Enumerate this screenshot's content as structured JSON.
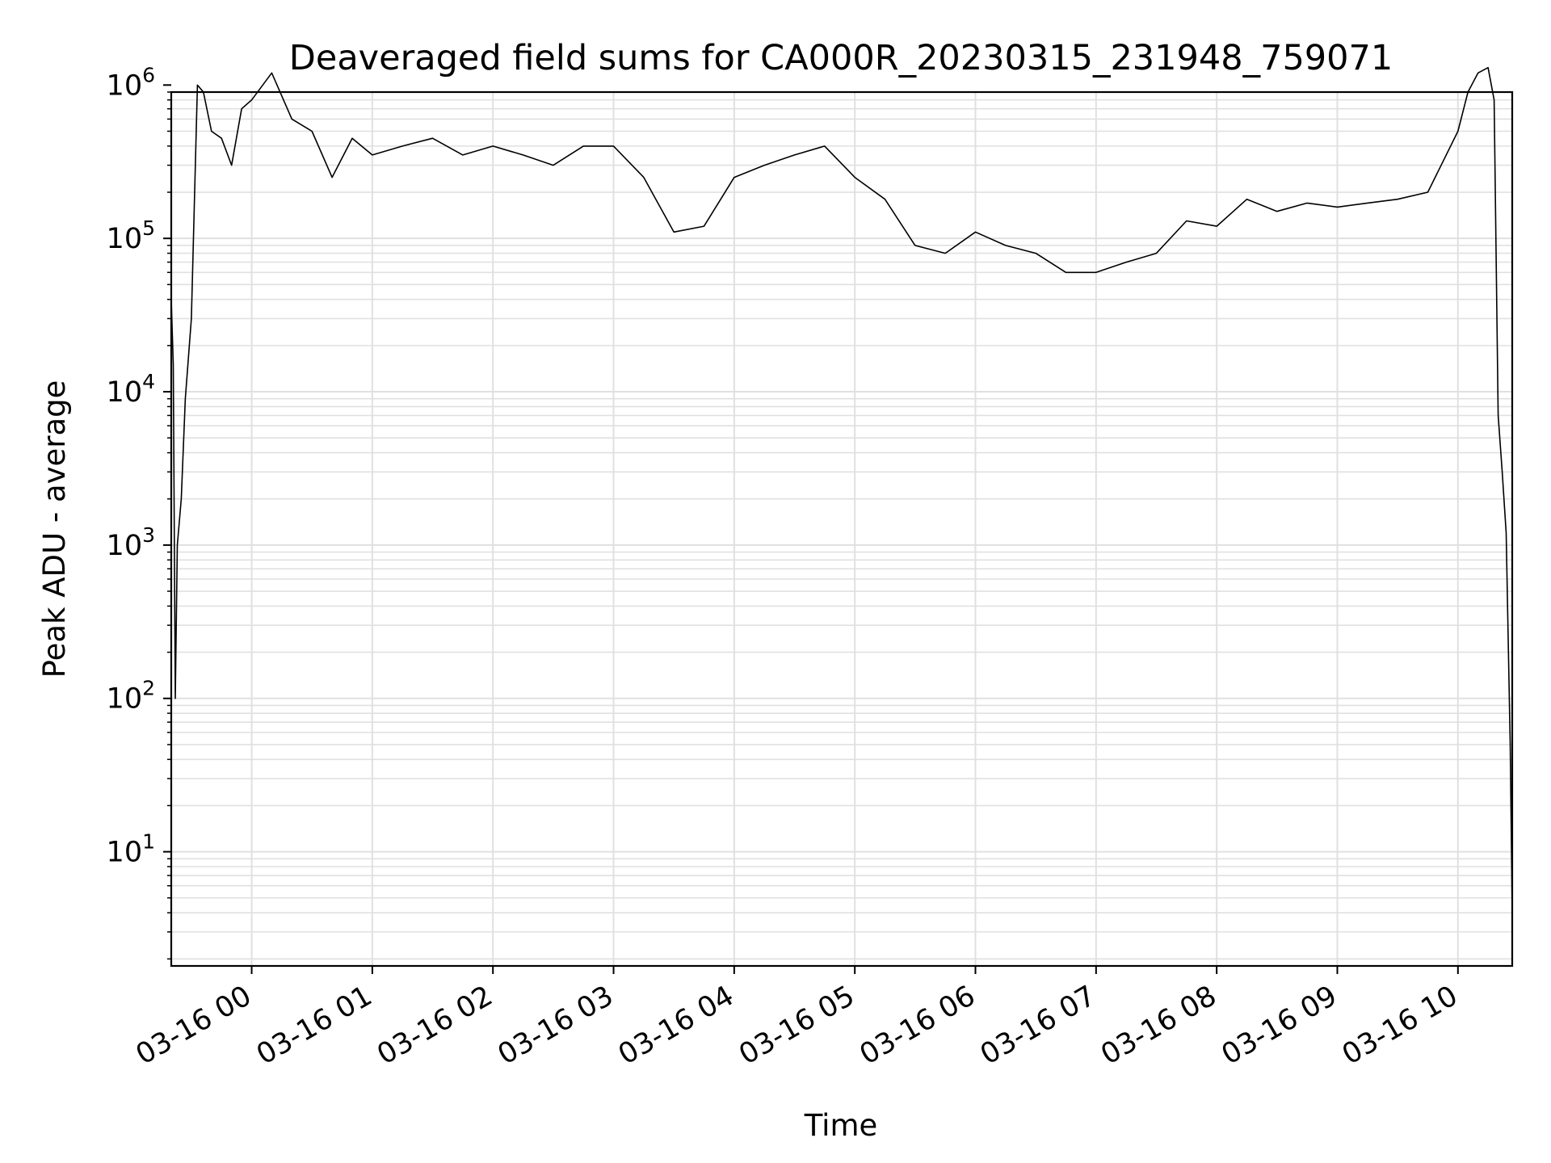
{
  "chart_data": {
    "type": "line",
    "title": "Deaveraged field sums for CA000R_20230315_231948_759071",
    "xlabel": "Time",
    "ylabel": "Peak ADU - average",
    "yscale": "log",
    "ylim": [
      1.8,
      900000
    ],
    "xlim": [
      "03-15 23:20",
      "03-16 10:27"
    ],
    "x_ticks": [
      "03-16 00",
      "03-16 01",
      "03-16 02",
      "03-16 03",
      "03-16 04",
      "03-16 05",
      "03-16 06",
      "03-16 07",
      "03-16 08",
      "03-16 09",
      "03-16 10"
    ],
    "y_ticks": [
      {
        "value": 10,
        "base": "10",
        "exp": "1"
      },
      {
        "value": 100,
        "base": "10",
        "exp": "2"
      },
      {
        "value": 1000,
        "base": "10",
        "exp": "3"
      },
      {
        "value": 10000,
        "base": "10",
        "exp": "4"
      },
      {
        "value": 100000,
        "base": "10",
        "exp": "5"
      },
      {
        "value": 1000000,
        "base": "10",
        "exp": "6"
      }
    ],
    "grid": true,
    "line_color": "#000000",
    "grid_color": "#e0e0e0",
    "series": [
      {
        "x": [
          "03-15 23:20",
          "03-15 23:21",
          "03-15 23:22",
          "03-15 23:23",
          "03-15 23:25",
          "03-15 23:27",
          "03-15 23:30",
          "03-15 23:33",
          "03-15 23:36",
          "03-15 23:40",
          "03-15 23:45",
          "03-15 23:50",
          "03-15 23:55",
          "03-16 00:00",
          "03-16 00:10",
          "03-16 00:20",
          "03-16 00:30",
          "03-16 00:40",
          "03-16 00:50",
          "03-16 01:00",
          "03-16 01:15",
          "03-16 01:30",
          "03-16 01:45",
          "03-16 02:00",
          "03-16 02:15",
          "03-16 02:30",
          "03-16 02:45",
          "03-16 03:00",
          "03-16 03:15",
          "03-16 03:30",
          "03-16 03:45",
          "03-16 04:00",
          "03-16 04:15",
          "03-16 04:30",
          "03-16 04:45",
          "03-16 05:00",
          "03-16 05:15",
          "03-16 05:30",
          "03-16 05:45",
          "03-16 06:00",
          "03-16 06:15",
          "03-16 06:30",
          "03-16 06:45",
          "03-16 07:00",
          "03-16 07:15",
          "03-16 07:30",
          "03-16 07:45",
          "03-16 08:00",
          "03-16 08:15",
          "03-16 08:30",
          "03-16 08:45",
          "03-16 09:00",
          "03-16 09:15",
          "03-16 09:30",
          "03-16 09:45",
          "03-16 10:00",
          "03-16 10:05",
          "03-16 10:10",
          "03-16 10:15",
          "03-16 10:18",
          "03-16 10:20",
          "03-16 10:22",
          "03-16 10:24",
          "03-16 10:26",
          "03-16 10:27"
        ],
        "y": [
          40000,
          15000,
          100,
          1000,
          2000,
          9000,
          30000,
          1000000,
          900000,
          500000,
          450000,
          300000,
          700000,
          800000,
          1200000,
          600000,
          500000,
          250000,
          450000,
          350000,
          400000,
          450000,
          350000,
          400000,
          350000,
          300000,
          400000,
          400000,
          250000,
          110000,
          120000,
          250000,
          300000,
          350000,
          400000,
          250000,
          180000,
          90000,
          80000,
          110000,
          90000,
          80000,
          60000,
          60000,
          70000,
          80000,
          130000,
          120000,
          180000,
          150000,
          170000,
          160000,
          170000,
          180000,
          200000,
          500000,
          900000,
          1200000,
          1300000,
          800000,
          7000,
          3000,
          1200,
          50,
          4
        ]
      }
    ]
  }
}
